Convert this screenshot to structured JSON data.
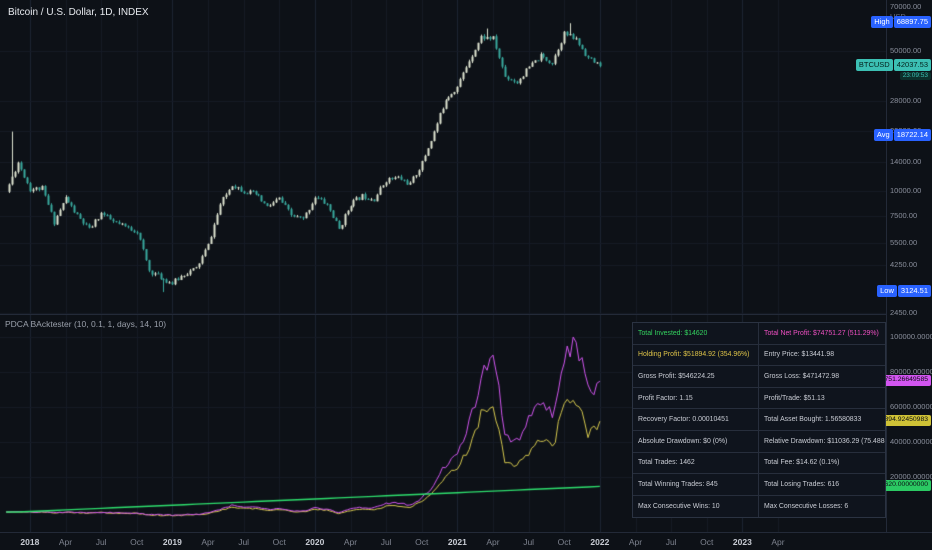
{
  "symbol_header": {
    "title": "Bitcoin / U.S. Dollar, 1D, INDEX"
  },
  "indicator_header": {
    "title": "PDCA BAcktester (10, 0.1, 1, days, 14, 10)"
  },
  "colors": {
    "bg": "#0d1117",
    "grid": "#161b26",
    "grid_strong": "#1d2433",
    "candle_up": "#dfe5d2",
    "candle_down": "#38a89d",
    "badge_blue": "#2962ff",
    "badge_last": "#3cc0b4",
    "badge_net": "#d255f0",
    "badge_holding": "#cfc236",
    "badge_invested": "#2bc963",
    "text_green": "#33d15e",
    "text_pink": "#ed4fc1",
    "text_yellow": "#ddc248"
  },
  "price_axis": {
    "unit": "USD",
    "top_label": {
      "text": "70000.00",
      "value": 70000
    },
    "ticks": [
      {
        "label": "50000.00",
        "value": 50000
      },
      {
        "label": "28000.00",
        "value": 28000
      },
      {
        "label": "20000.00",
        "value": 20000
      },
      {
        "label": "14000.00",
        "value": 14000
      },
      {
        "label": "10000.00",
        "value": 10000
      },
      {
        "label": "7500.00",
        "value": 7500
      },
      {
        "label": "5500.00",
        "value": 5500
      },
      {
        "label": "4250.00",
        "value": 4250
      },
      {
        "label": "2450.00",
        "value": 2450
      }
    ],
    "badges": {
      "high": {
        "label": "High",
        "value": "68897.75",
        "price": 68897.75
      },
      "last": {
        "label": "BTCUSD",
        "value": "42037.53",
        "price": 42037.53,
        "countdown": "23:09:53"
      },
      "avg": {
        "label": "Avg",
        "value": "18722.14",
        "price": 18722.14
      },
      "low": {
        "label": "Low",
        "value": "3124.51",
        "price": 3124.51
      }
    }
  },
  "bt_axis": {
    "ticks": [
      {
        "label": "100000.00000000",
        "value": 100000
      },
      {
        "label": "80000.00000000",
        "value": 80000
      },
      {
        "label": "60000.00000000",
        "value": 60000
      },
      {
        "label": "40000.00000000",
        "value": 40000
      },
      {
        "label": "20000.00000000",
        "value": 20000
      }
    ],
    "badges": [
      {
        "label": "74751.26649585",
        "value": 74751.27,
        "color_key": "badge_net"
      },
      {
        "label": "51894.92450983",
        "value": 51894.92,
        "color_key": "badge_holding"
      },
      {
        "label": "14620.00000000",
        "value": 14620,
        "color_key": "badge_invested"
      }
    ]
  },
  "time_axis": {
    "labels": [
      {
        "text": "2018",
        "m": 1,
        "year": true
      },
      {
        "text": "Apr",
        "m": 4
      },
      {
        "text": "Jul",
        "m": 7
      },
      {
        "text": "Oct",
        "m": 10
      },
      {
        "text": "2019",
        "m": 13,
        "year": true
      },
      {
        "text": "Apr",
        "m": 16
      },
      {
        "text": "Jul",
        "m": 19
      },
      {
        "text": "Oct",
        "m": 22
      },
      {
        "text": "2020",
        "m": 25,
        "year": true
      },
      {
        "text": "Apr",
        "m": 28
      },
      {
        "text": "Jul",
        "m": 31
      },
      {
        "text": "Oct",
        "m": 34
      },
      {
        "text": "2021",
        "m": 37,
        "year": true
      },
      {
        "text": "Apr",
        "m": 40
      },
      {
        "text": "Jul",
        "m": 43
      },
      {
        "text": "Oct",
        "m": 46
      },
      {
        "text": "2022",
        "m": 49,
        "year": true
      },
      {
        "text": "Apr",
        "m": 52
      },
      {
        "text": "Jul",
        "m": 55
      },
      {
        "text": "Oct",
        "m": 58
      },
      {
        "text": "2023",
        "m": 61,
        "year": true
      },
      {
        "text": "Apr",
        "m": 64
      }
    ]
  },
  "stats_table": {
    "rows": [
      {
        "left": {
          "text": "Total Invested: $14620",
          "color": "#33d15e"
        },
        "right": {
          "text": "Total Net Profit: $74751.27 (511.29%)",
          "color": "#ed4fc1"
        }
      },
      {
        "left": {
          "text": "Holding Profit: $51894.92 (354.96%)",
          "color": "#ddc248"
        },
        "right": {
          "text": "Entry Price: $13441.98"
        }
      },
      {
        "left": {
          "text": "Gross Profit: $546224.25"
        },
        "right": {
          "text": "Gross Loss: $471472.98"
        }
      },
      {
        "left": {
          "text": "Profit Factor: 1.15"
        },
        "right": {
          "text": "Profit/Trade: $51.13"
        }
      },
      {
        "left": {
          "text": "Recovery Factor: 0.00010451"
        },
        "right": {
          "text": "Total Asset Bought: 1.56580833"
        }
      },
      {
        "left": {
          "text": "Absolute Drawdown: $0 (0%)"
        },
        "right": {
          "text": "Relative Drawdown: $11036.29 (75.4885%)"
        }
      },
      {
        "left": {
          "text": "Total Trades: 1462"
        },
        "right": {
          "text": "Total Fee: $14.62 (0.1%)"
        }
      },
      {
        "left": {
          "text": "Total Winning Trades: 845"
        },
        "right": {
          "text": "Total Losing Trades: 616"
        }
      },
      {
        "left": {
          "text": "Max Consecutive Wins: 10"
        },
        "right": {
          "text": "Max Consecutive Losses: 6"
        }
      }
    ]
  },
  "timeline_months": [
    "2017-11",
    "2017-12",
    "2018-01",
    "2018-02",
    "2018-03",
    "2018-04",
    "2018-05",
    "2018-06",
    "2018-07",
    "2018-08",
    "2018-09",
    "2018-10",
    "2018-11",
    "2018-12",
    "2019-01",
    "2019-02",
    "2019-03",
    "2019-04",
    "2019-05",
    "2019-06",
    "2019-07",
    "2019-08",
    "2019-09",
    "2019-10",
    "2019-11",
    "2019-12",
    "2020-01",
    "2020-02",
    "2020-03",
    "2020-04",
    "2020-05",
    "2020-06",
    "2020-07",
    "2020-08",
    "2020-09",
    "2020-10",
    "2020-11",
    "2020-12",
    "2021-01",
    "2021-02",
    "2021-03",
    "2021-04",
    "2021-05",
    "2021-06",
    "2021-07",
    "2021-08",
    "2021-09",
    "2021-10",
    "2021-11",
    "2021-12",
    "2022-01"
  ],
  "chart_data": [
    {
      "type": "candlestick",
      "title": "Bitcoin / U.S. Dollar, 1D, INDEX",
      "symbol": "BTCUSD",
      "timeframe": "1D",
      "scale": "log",
      "ylim": [
        2400,
        90000
      ],
      "close": [
        9900,
        13900,
        10200,
        10300,
        7000,
        9250,
        7500,
        6400,
        7750,
        7000,
        6600,
        6300,
        4000,
        3700,
        3450,
        3850,
        4100,
        5350,
        8550,
        10800,
        10000,
        9600,
        8300,
        9150,
        7550,
        7200,
        9350,
        8550,
        6450,
        8650,
        9450,
        9150,
        11350,
        11650,
        10800,
        13800,
        19700,
        29000,
        33100,
        45100,
        58800,
        57750,
        37300,
        35000,
        41600,
        47150,
        43800,
        61300,
        57000,
        46200,
        42037.53
      ],
      "key_levels": {
        "high": 68897.75,
        "last": 42037.53,
        "avg": 18722.14,
        "low": 3124.51
      }
    },
    {
      "type": "line",
      "title": "PDCA BAcktester (10, 0.1, 1, days, 14, 10)",
      "ylim": [
        0,
        112600
      ],
      "legend_position": "none",
      "series": [
        {
          "name": "Total Invested",
          "color": "#2ee06e",
          "values": [
            0,
            0,
            298,
            597,
            895,
            1193,
            1492,
            1790,
            2089,
            2387,
            2685,
            2984,
            3282,
            3580,
            3879,
            4177,
            4476,
            4774,
            5072,
            5371,
            5669,
            5967,
            6266,
            6564,
            6862,
            7161,
            7459,
            7758,
            8056,
            8354,
            8653,
            8951,
            9249,
            9548,
            9846,
            10145,
            10443,
            10741,
            11040,
            11338,
            11636,
            11935,
            12233,
            12531,
            12830,
            13128,
            13427,
            13725,
            14023,
            14322,
            14620
          ]
        },
        {
          "name": "Holding Profit",
          "color": "#d6c94e",
          "values": [
            0,
            0,
            -50,
            -80,
            -400,
            -100,
            -350,
            -600,
            -300,
            -550,
            -650,
            -750,
            -1700,
            -1900,
            -2100,
            -1800,
            -1600,
            -900,
            900,
            2600,
            2100,
            1800,
            900,
            1500,
            300,
            0,
            1600,
            1000,
            -900,
            900,
            1600,
            1400,
            3200,
            3500,
            2700,
            5600,
            11000,
            20000,
            25000,
            38000,
            56000,
            62000,
            30000,
            27000,
            34000,
            41000,
            37000,
            60000,
            64000,
            45000,
            51894.92
          ]
        },
        {
          "name": "Total Net Profit",
          "color": "#d255f0",
          "values": [
            0,
            0,
            -40,
            -60,
            -350,
            -60,
            -300,
            -500,
            -200,
            -450,
            -550,
            -650,
            -1500,
            -1700,
            -1900,
            -1500,
            -1300,
            -600,
            1500,
            3800,
            3100,
            2700,
            1500,
            2300,
            700,
            400,
            2400,
            1600,
            -400,
            1600,
            2600,
            2300,
            4800,
            5200,
            4100,
            7800,
            15000,
            27000,
            34000,
            52000,
            75000,
            95000,
            45000,
            40000,
            52000,
            63000,
            56000,
            88000,
            99000,
            68000,
            74751.27
          ]
        }
      ]
    }
  ]
}
